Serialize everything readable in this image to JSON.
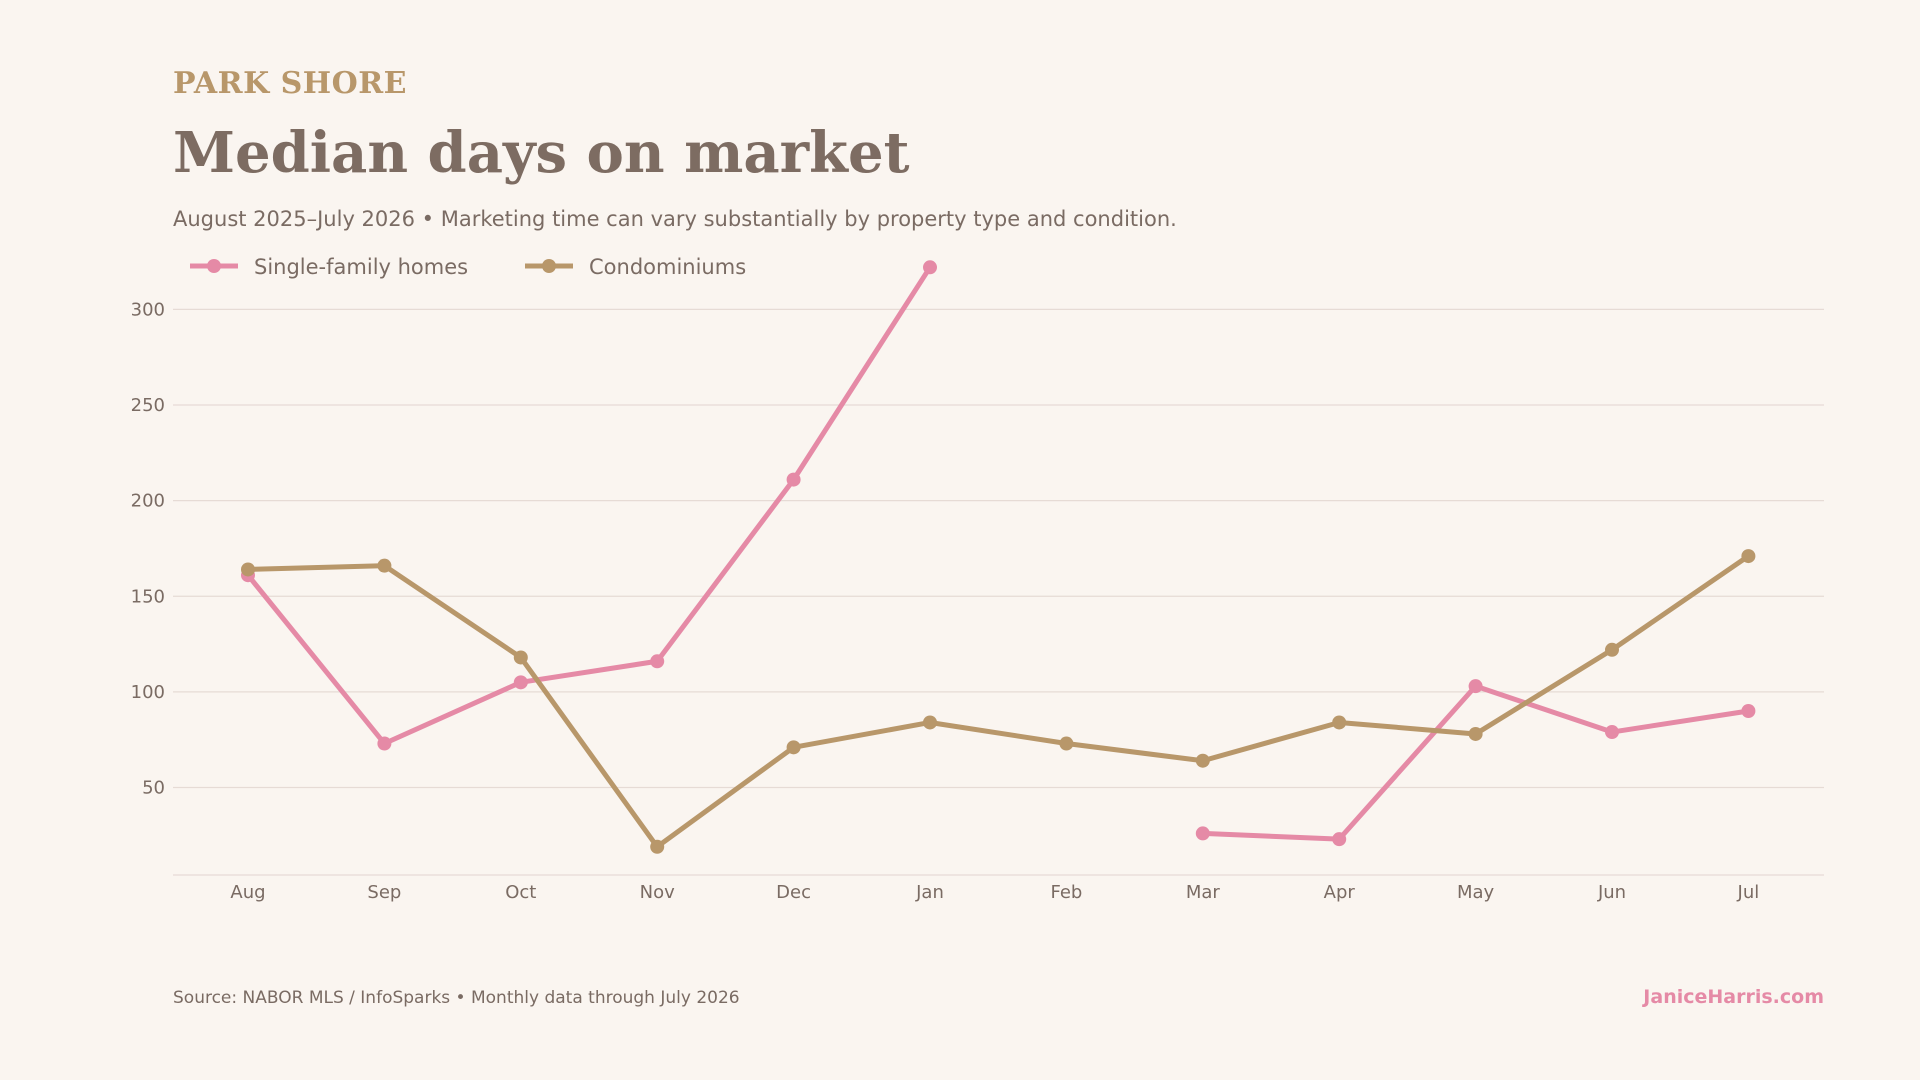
{
  "header": {
    "eyebrow": "PARK SHORE",
    "title": "Median days on market",
    "subtitle": "August 2025–July 2026 • Marketing time can vary substantially by property type and condition."
  },
  "footer": {
    "source": "Source: NABOR MLS / InfoSparks • Monthly data through July 2026",
    "brand": "JaniceHarris.com"
  },
  "colors": {
    "single_family": "#e58aa6",
    "condo": "#b8976a",
    "grid": "#e6dbd5",
    "text": "#7a6b63"
  },
  "chart_data": {
    "type": "line",
    "categories": [
      "Aug",
      "Sep",
      "Oct",
      "Nov",
      "Dec",
      "Jan",
      "Feb",
      "Mar",
      "Apr",
      "May",
      "Jun",
      "Jul"
    ],
    "ylim": [
      5,
      305
    ],
    "yticks": [
      50,
      100,
      150,
      200,
      250,
      300
    ],
    "grid": true,
    "legend_position": "top-left",
    "series": [
      {
        "name": "Single-family homes",
        "color": "#e58aa6",
        "values": [
          161,
          73,
          105,
          116,
          211,
          322,
          null,
          26,
          23,
          103,
          79,
          90
        ]
      },
      {
        "name": "Condominiums",
        "color": "#b8976a",
        "values": [
          164,
          166,
          118,
          19,
          71,
          84,
          73,
          64,
          84,
          78,
          122,
          171
        ]
      }
    ]
  }
}
